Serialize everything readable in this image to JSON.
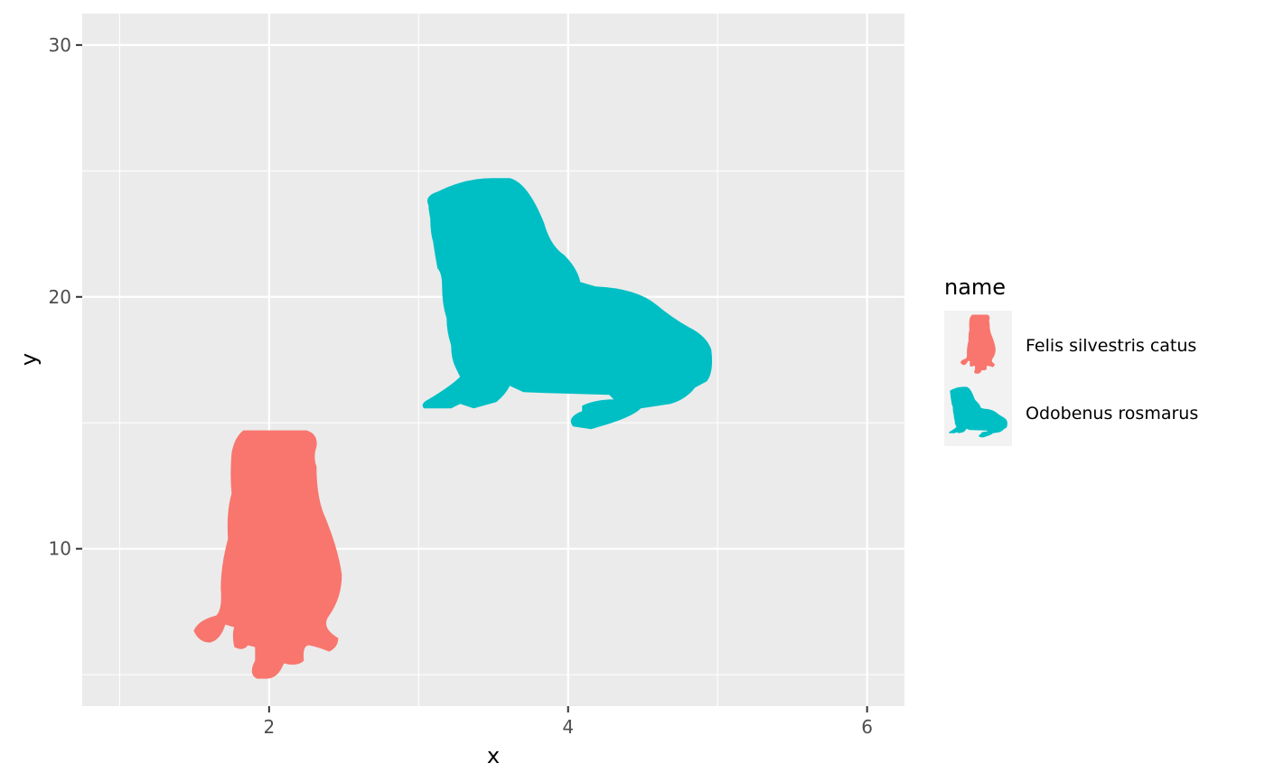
{
  "chart_data": {
    "type": "scatter",
    "title": "",
    "xlabel": "x",
    "ylabel": "y",
    "xlim": [
      0.75,
      6.25
    ],
    "ylim": [
      3.75,
      31.25
    ],
    "x_ticks": [
      2,
      4,
      6
    ],
    "x_tick_labels": [
      "2",
      "4",
      "6"
    ],
    "x_minor_ticks": [
      1,
      3,
      5
    ],
    "y_ticks": [
      10,
      20,
      30
    ],
    "y_tick_labels": [
      "10",
      "20",
      "30"
    ],
    "y_minor_ticks": [
      5,
      15,
      25
    ],
    "grid": true,
    "legend": {
      "title": "name",
      "placement": "right"
    },
    "series": [
      {
        "name": "Felis silvestris catus",
        "label": "Felis silvestris catus",
        "color": "#F8766D",
        "icon": "cat-silhouette-icon",
        "x": 2,
        "y": 10
      },
      {
        "name": "Odobenus rosmarus",
        "label": "Odobenus rosmarus",
        "color": "#00BFC4",
        "icon": "walrus-silhouette-icon",
        "x": 4,
        "y": 20
      }
    ],
    "colors": {
      "panel_background": "#EBEBEB",
      "grid_major": "#FFFFFF",
      "legend_key_background": "#F2F2F2",
      "tick_mark": "#333333"
    }
  }
}
